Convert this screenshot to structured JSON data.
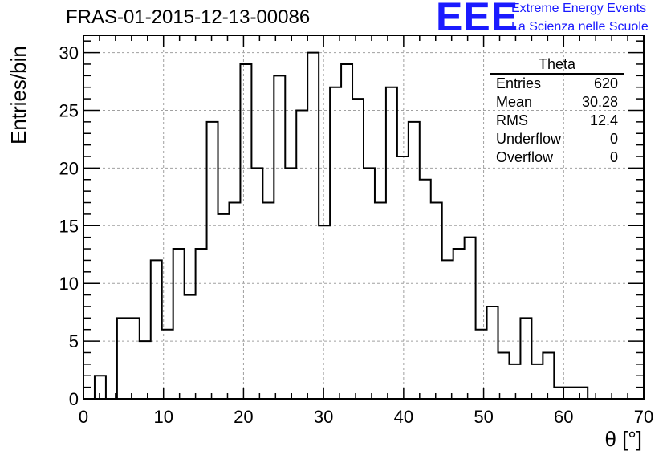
{
  "chart_data": {
    "type": "bar",
    "title": "FRAS-01-2015-12-13-00086",
    "xlabel": "θ [°]",
    "ylabel": "Entries/bin",
    "xlim": [
      0,
      70
    ],
    "ylim": [
      0,
      31.5
    ],
    "grid": true,
    "bin_width": 1.4,
    "x_ticks": [
      0,
      10,
      20,
      30,
      40,
      50,
      60,
      70
    ],
    "y_ticks": [
      0,
      5,
      10,
      15,
      20,
      25,
      30
    ],
    "values": [
      0,
      2,
      0,
      7,
      7,
      5,
      12,
      6,
      13,
      9,
      13,
      24,
      16,
      17,
      29,
      20,
      17,
      28,
      20,
      25,
      30,
      15,
      27,
      29,
      26,
      20,
      17,
      27,
      21,
      24,
      19,
      17,
      12,
      13,
      14,
      6,
      8,
      4,
      3,
      7,
      3,
      4,
      1,
      1,
      1,
      0,
      0,
      0,
      0,
      0
    ],
    "stats_box": {
      "title": "Theta",
      "position": "top-right",
      "rows": [
        {
          "label": "Entries",
          "value": "620"
        },
        {
          "label": "Mean",
          "value": "30.28"
        },
        {
          "label": "RMS",
          "value": "12.4"
        },
        {
          "label": "Underflow",
          "value": "0"
        },
        {
          "label": "Overflow",
          "value": "0"
        }
      ]
    }
  },
  "logo": {
    "mark": "EEE",
    "line1": "Extreme Energy Events",
    "line2": "La Scienza nelle Scuole",
    "color": "#1a1aff"
  }
}
